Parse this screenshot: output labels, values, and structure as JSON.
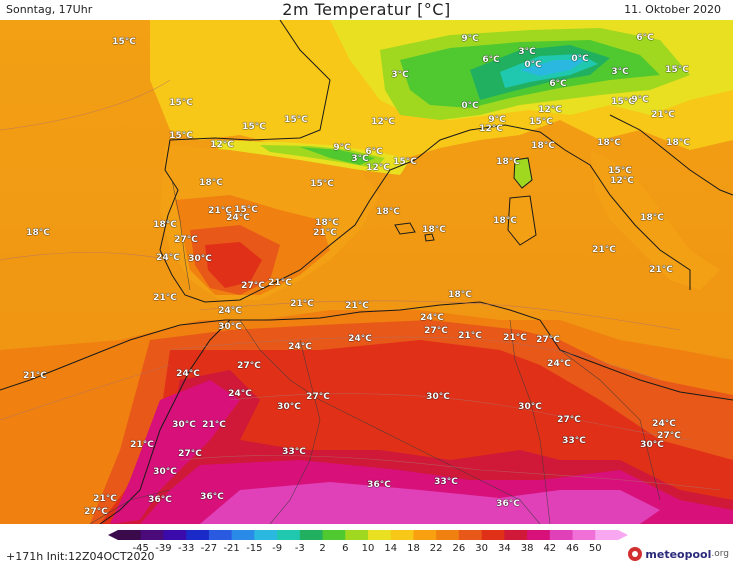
{
  "header": {
    "time_label": "Sonntag, 17Uhr",
    "title": "2m Temperatur [°C]",
    "date_label": "11. Oktober 2020"
  },
  "footer": {
    "init_label": "+171h  Init:12Z04OCT2020",
    "logo_word": "meteopool",
    "logo_ext": ".org"
  },
  "colorbar": {
    "ticks": [
      "-45",
      "-39",
      "-33",
      "-27",
      "-21",
      "-15",
      "-9",
      "-3",
      "2",
      "6",
      "10",
      "14",
      "18",
      "22",
      "26",
      "30",
      "34",
      "38",
      "42",
      "46",
      "50"
    ],
    "colors": [
      "#3a0a4a",
      "#4a0a7a",
      "#3a0aaa",
      "#1a2ac8",
      "#2a5ae0",
      "#2a8ae8",
      "#2ab8e0",
      "#20c8b0",
      "#20b060",
      "#50c830",
      "#a0d820",
      "#e8e020",
      "#f8c818",
      "#f8a010",
      "#f08010",
      "#e85818",
      "#e03018",
      "#d01838",
      "#d8107a",
      "#e040b8",
      "#f070d8",
      "#f8a8f0"
    ]
  },
  "map_labels": [
    {
      "text": "15°C",
      "lx": 124,
      "ly": 22
    },
    {
      "text": "9°C",
      "lx": 470,
      "ly": 19
    },
    {
      "text": "3°C",
      "lx": 527,
      "ly": 32
    },
    {
      "text": "6°C",
      "lx": 645,
      "ly": 18
    },
    {
      "text": "6°C",
      "lx": 491,
      "ly": 40
    },
    {
      "text": "0°C",
      "lx": 533,
      "ly": 45
    },
    {
      "text": "0°C",
      "lx": 580,
      "ly": 39
    },
    {
      "text": "3°C",
      "lx": 400,
      "ly": 55
    },
    {
      "text": "3°C",
      "lx": 620,
      "ly": 52
    },
    {
      "text": "15°C",
      "lx": 677,
      "ly": 50
    },
    {
      "text": "6°C",
      "lx": 558,
      "ly": 64
    },
    {
      "text": "15°C",
      "lx": 181,
      "ly": 83
    },
    {
      "text": "15°C",
      "lx": 296,
      "ly": 100
    },
    {
      "text": "12°C",
      "lx": 383,
      "ly": 102
    },
    {
      "text": "0°C",
      "lx": 470,
      "ly": 86
    },
    {
      "text": "9°C",
      "lx": 497,
      "ly": 100
    },
    {
      "text": "12°C",
      "lx": 491,
      "ly": 109
    },
    {
      "text": "12°C",
      "lx": 550,
      "ly": 90
    },
    {
      "text": "15°C",
      "lx": 541,
      "ly": 102
    },
    {
      "text": "15°C",
      "lx": 623,
      "ly": 82
    },
    {
      "text": "9°C",
      "lx": 640,
      "ly": 80
    },
    {
      "text": "21°C",
      "lx": 663,
      "ly": 95
    },
    {
      "text": "15°C",
      "lx": 181,
      "ly": 116
    },
    {
      "text": "15°C",
      "lx": 254,
      "ly": 107
    },
    {
      "text": "12°C",
      "lx": 222,
      "ly": 125
    },
    {
      "text": "9°C",
      "lx": 342,
      "ly": 128
    },
    {
      "text": "6°C",
      "lx": 374,
      "ly": 132
    },
    {
      "text": "3°C",
      "lx": 360,
      "ly": 139
    },
    {
      "text": "12°C",
      "lx": 378,
      "ly": 148
    },
    {
      "text": "15°C",
      "lx": 405,
      "ly": 142
    },
    {
      "text": "18°C",
      "lx": 543,
      "ly": 126
    },
    {
      "text": "18°C",
      "lx": 609,
      "ly": 123
    },
    {
      "text": "18°C",
      "lx": 678,
      "ly": 123
    },
    {
      "text": "18°C",
      "lx": 508,
      "ly": 142
    },
    {
      "text": "15°C",
      "lx": 620,
      "ly": 151
    },
    {
      "text": "12°C",
      "lx": 622,
      "ly": 161
    },
    {
      "text": "18°C",
      "lx": 211,
      "ly": 163
    },
    {
      "text": "15°C",
      "lx": 322,
      "ly": 164
    },
    {
      "text": "21°C",
      "lx": 220,
      "ly": 191
    },
    {
      "text": "15°C",
      "lx": 246,
      "ly": 190
    },
    {
      "text": "24°C",
      "lx": 238,
      "ly": 198
    },
    {
      "text": "18°C",
      "lx": 388,
      "ly": 192
    },
    {
      "text": "18°C",
      "lx": 505,
      "ly": 201
    },
    {
      "text": "18°C",
      "lx": 652,
      "ly": 198
    },
    {
      "text": "18°C",
      "lx": 165,
      "ly": 205
    },
    {
      "text": "18°C",
      "lx": 327,
      "ly": 203
    },
    {
      "text": "21°C",
      "lx": 325,
      "ly": 213
    },
    {
      "text": "18°C",
      "lx": 434,
      "ly": 210
    },
    {
      "text": "18°C",
      "lx": 38,
      "ly": 213
    },
    {
      "text": "27°C",
      "lx": 186,
      "ly": 220
    },
    {
      "text": "24°C",
      "lx": 168,
      "ly": 238
    },
    {
      "text": "30°C",
      "lx": 200,
      "ly": 239
    },
    {
      "text": "21°C",
      "lx": 604,
      "ly": 230
    },
    {
      "text": "21°C",
      "lx": 661,
      "ly": 250
    },
    {
      "text": "27°C",
      "lx": 253,
      "ly": 266
    },
    {
      "text": "21°C",
      "lx": 280,
      "ly": 263
    },
    {
      "text": "18°C",
      "lx": 460,
      "ly": 275
    },
    {
      "text": "21°C",
      "lx": 165,
      "ly": 278
    },
    {
      "text": "21°C",
      "lx": 302,
      "ly": 284
    },
    {
      "text": "21°C",
      "lx": 357,
      "ly": 286
    },
    {
      "text": "24°C",
      "lx": 230,
      "ly": 291
    },
    {
      "text": "24°C",
      "lx": 432,
      "ly": 298
    },
    {
      "text": "30°C",
      "lx": 230,
      "ly": 307
    },
    {
      "text": "27°C",
      "lx": 436,
      "ly": 311
    },
    {
      "text": "21°C",
      "lx": 470,
      "ly": 316
    },
    {
      "text": "21°C",
      "lx": 515,
      "ly": 318
    },
    {
      "text": "27°C",
      "lx": 548,
      "ly": 320
    },
    {
      "text": "24°C",
      "lx": 360,
      "ly": 319
    },
    {
      "text": "24°C",
      "lx": 300,
      "ly": 327
    },
    {
      "text": "24°C",
      "lx": 559,
      "ly": 344
    },
    {
      "text": "27°C",
      "lx": 249,
      "ly": 346
    },
    {
      "text": "21°C",
      "lx": 35,
      "ly": 356
    },
    {
      "text": "24°C",
      "lx": 188,
      "ly": 354
    },
    {
      "text": "24°C",
      "lx": 240,
      "ly": 374
    },
    {
      "text": "30°C",
      "lx": 438,
      "ly": 377
    },
    {
      "text": "27°C",
      "lx": 318,
      "ly": 377
    },
    {
      "text": "30°C",
      "lx": 289,
      "ly": 387
    },
    {
      "text": "30°C",
      "lx": 530,
      "ly": 387
    },
    {
      "text": "27°C",
      "lx": 569,
      "ly": 400
    },
    {
      "text": "30°C",
      "lx": 184,
      "ly": 405
    },
    {
      "text": "21°C",
      "lx": 214,
      "ly": 405
    },
    {
      "text": "24°C",
      "lx": 664,
      "ly": 404
    },
    {
      "text": "27°C",
      "lx": 669,
      "ly": 416
    },
    {
      "text": "33°C",
      "lx": 574,
      "ly": 421
    },
    {
      "text": "30°C",
      "lx": 652,
      "ly": 425
    },
    {
      "text": "21°C",
      "lx": 142,
      "ly": 425
    },
    {
      "text": "27°C",
      "lx": 190,
      "ly": 434
    },
    {
      "text": "33°C",
      "lx": 294,
      "ly": 432
    },
    {
      "text": "30°C",
      "lx": 165,
      "ly": 452
    },
    {
      "text": "36°C",
      "lx": 379,
      "ly": 465
    },
    {
      "text": "33°C",
      "lx": 446,
      "ly": 462
    },
    {
      "text": "21°C",
      "lx": 105,
      "ly": 479
    },
    {
      "text": "36°C",
      "lx": 160,
      "ly": 480
    },
    {
      "text": "36°C",
      "lx": 212,
      "ly": 477
    },
    {
      "text": "36°C",
      "lx": 508,
      "ly": 484
    },
    {
      "text": "27°C",
      "lx": 96,
      "ly": 492
    }
  ]
}
